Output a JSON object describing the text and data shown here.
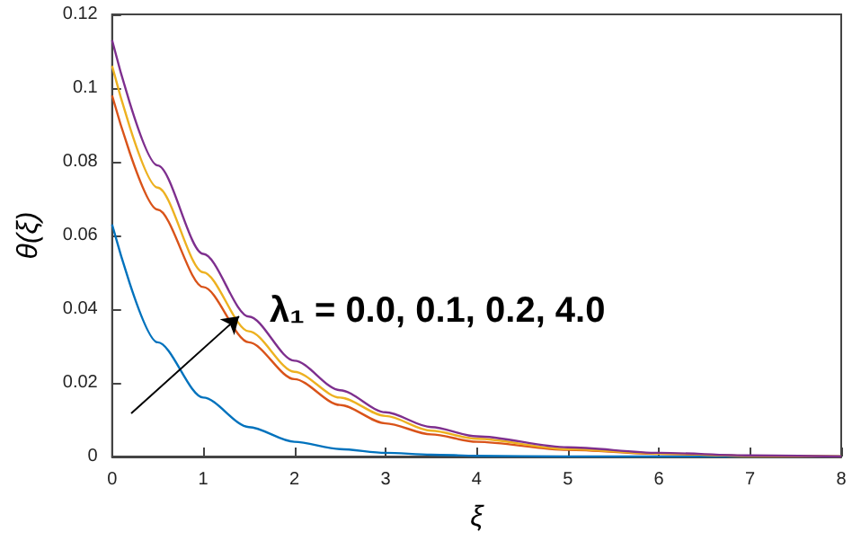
{
  "chart_data": {
    "type": "line",
    "xlabel": "ξ",
    "ylabel": "θ(ξ)",
    "annotations": [
      "λ₁ = 0.0, 0.1, 0.2, 4.0"
    ],
    "x": [
      0,
      0.5,
      1,
      1.5,
      2,
      2.5,
      3,
      3.5,
      4,
      5,
      6,
      7,
      8
    ],
    "series": [
      {
        "color": "#0072bd",
        "values": [
          0.063,
          0.031,
          0.016,
          0.008,
          0.004,
          0.002,
          0.001,
          0.0005,
          0.0002,
          0,
          0,
          0,
          0
        ]
      },
      {
        "color": "#d95319",
        "values": [
          0.098,
          0.067,
          0.046,
          0.031,
          0.021,
          0.014,
          0.009,
          0.006,
          0.004,
          0.0018,
          0.0007,
          0.0002,
          0
        ]
      },
      {
        "color": "#edb120",
        "values": [
          0.106,
          0.073,
          0.05,
          0.034,
          0.023,
          0.016,
          0.011,
          0.007,
          0.0048,
          0.002,
          0.0008,
          0.0002,
          0
        ]
      },
      {
        "color": "#7e2f8e",
        "values": [
          0.113,
          0.079,
          0.055,
          0.038,
          0.026,
          0.018,
          0.012,
          0.008,
          0.0055,
          0.0025,
          0.001,
          0.0003,
          0
        ]
      }
    ],
    "xlim": [
      0,
      8
    ],
    "xticks": [
      0,
      1,
      2,
      3,
      4,
      5,
      6,
      7,
      8
    ],
    "ylim": [
      0,
      0.12
    ],
    "yticks": [
      0,
      0.02,
      0.04,
      0.06,
      0.08,
      0.1,
      0.12
    ],
    "grid": false,
    "marker": "none",
    "line_style": "solid"
  }
}
